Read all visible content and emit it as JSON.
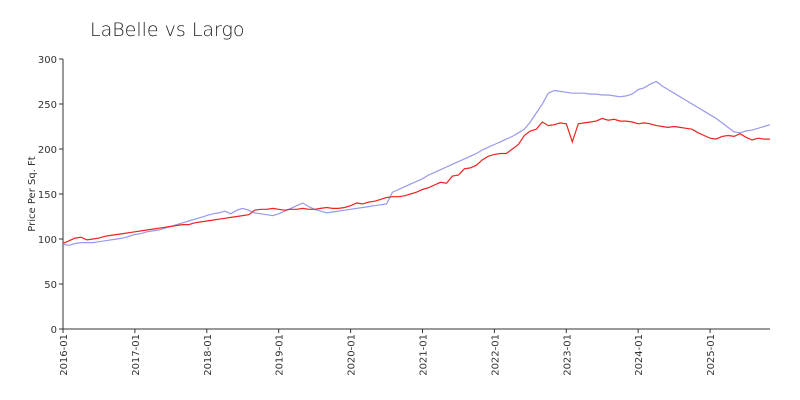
{
  "chart_data": {
    "type": "line",
    "title": "LaBelle vs Largo",
    "y_label": "Price Per Sq. Ft",
    "x": [
      "2016-01",
      "2016-02",
      "2016-03",
      "2016-04",
      "2016-05",
      "2016-06",
      "2016-07",
      "2016-08",
      "2016-09",
      "2016-10",
      "2016-11",
      "2016-12",
      "2017-01",
      "2017-02",
      "2017-03",
      "2017-04",
      "2017-05",
      "2017-06",
      "2017-07",
      "2017-08",
      "2017-09",
      "2017-10",
      "2017-11",
      "2017-12",
      "2018-01",
      "2018-02",
      "2018-03",
      "2018-04",
      "2018-05",
      "2018-06",
      "2018-07",
      "2018-08",
      "2018-09",
      "2018-10",
      "2018-11",
      "2018-12",
      "2019-01",
      "2019-02",
      "2019-03",
      "2019-04",
      "2019-05",
      "2019-06",
      "2019-07",
      "2019-08",
      "2019-09",
      "2019-10",
      "2019-11",
      "2019-12",
      "2020-01",
      "2020-02",
      "2020-03",
      "2020-04",
      "2020-05",
      "2020-06",
      "2020-07",
      "2020-08",
      "2020-09",
      "2020-10",
      "2020-11",
      "2020-12",
      "2021-01",
      "2021-02",
      "2021-03",
      "2021-04",
      "2021-05",
      "2021-06",
      "2021-07",
      "2021-08",
      "2021-09",
      "2021-10",
      "2021-11",
      "2021-12",
      "2022-01",
      "2022-02",
      "2022-03",
      "2022-04",
      "2022-05",
      "2022-06",
      "2022-07",
      "2022-08",
      "2022-09",
      "2022-10",
      "2022-11",
      "2022-12",
      "2023-01",
      "2023-02",
      "2023-03",
      "2023-04",
      "2023-05",
      "2023-06",
      "2023-07",
      "2023-08",
      "2023-09",
      "2023-10",
      "2023-11",
      "2023-12",
      "2024-01",
      "2024-02",
      "2024-03",
      "2024-04",
      "2024-05",
      "2024-06",
      "2024-07",
      "2024-08",
      "2024-09",
      "2024-10",
      "2024-11",
      "2024-12",
      "2025-01",
      "2025-02",
      "2025-03",
      "2025-04",
      "2025-05",
      "2025-06",
      "2025-07",
      "2025-08",
      "2025-09",
      "2025-10",
      "2025-11"
    ],
    "series": [
      {
        "color": "#9999ee",
        "values": [
          94,
          93,
          95,
          96,
          96,
          96,
          97,
          98,
          99,
          100,
          101,
          103,
          105,
          106,
          108,
          109,
          110,
          112,
          114,
          116,
          118,
          120,
          122,
          124,
          126,
          128,
          129,
          131,
          128,
          132,
          134,
          132,
          129,
          128,
          127,
          126,
          128,
          131,
          134,
          137,
          140,
          136,
          133,
          131,
          129,
          130,
          131,
          132,
          133,
          134,
          135,
          136,
          137,
          138,
          139,
          152,
          155,
          158,
          161,
          164,
          167,
          171,
          174,
          177,
          180,
          183,
          186,
          189,
          192,
          195,
          199,
          202,
          205,
          208,
          211,
          214,
          218,
          222,
          230,
          240,
          250,
          262,
          265,
          264,
          263,
          262,
          262,
          262,
          261,
          261,
          260,
          260,
          259,
          258,
          259,
          261,
          266,
          268,
          272,
          275,
          270,
          266,
          262,
          258,
          254,
          250,
          246,
          242,
          238,
          234,
          229,
          224,
          219,
          218,
          220,
          221,
          223,
          225,
          227
        ]
      },
      {
        "color": "#ee2222",
        "values": [
          95,
          98,
          101,
          102,
          99,
          100,
          101,
          103,
          104,
          105,
          106,
          107,
          108,
          109,
          110,
          111,
          112,
          113,
          114,
          115,
          116,
          116,
          118,
          119,
          120,
          121,
          122,
          123,
          124,
          125,
          126,
          127,
          132,
          133,
          133,
          134,
          133,
          132,
          133,
          133,
          134,
          133,
          133,
          134,
          135,
          134,
          134,
          135,
          137,
          140,
          139,
          141,
          142,
          144,
          146,
          147,
          147,
          148,
          150,
          152,
          155,
          157,
          160,
          163,
          162,
          170,
          171,
          178,
          179,
          182,
          188,
          192,
          194,
          195,
          195,
          200,
          205,
          215,
          220,
          222,
          230,
          226,
          227,
          229,
          228,
          208,
          228,
          229,
          230,
          231,
          234,
          232,
          233,
          231,
          231,
          230,
          228,
          229,
          228,
          226,
          225,
          224,
          225,
          224,
          223,
          222,
          218,
          215,
          212,
          211,
          214,
          215,
          214,
          217,
          213,
          210,
          212,
          211,
          211
        ]
      }
    ],
    "xlim": [
      "2016-01",
      "2025-11"
    ],
    "xticks": [
      "2016-01",
      "2017-01",
      "2018-01",
      "2019-01",
      "2020-01",
      "2021-01",
      "2022-01",
      "2023-01",
      "2024-01",
      "2025-01"
    ],
    "ylim": [
      0,
      300
    ],
    "yticks": [
      0,
      50,
      100,
      150,
      200,
      250,
      300
    ]
  }
}
